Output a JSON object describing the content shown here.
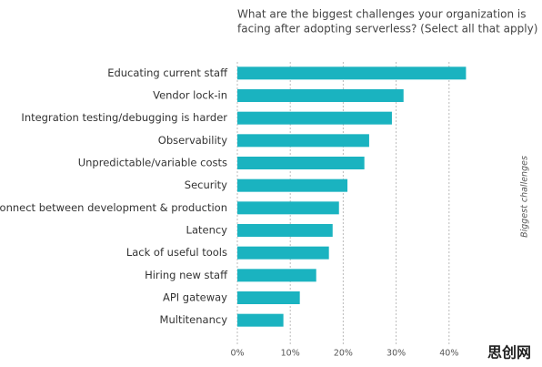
{
  "chart_data": {
    "type": "bar",
    "orientation": "horizontal",
    "title": [
      "What are the biggest challenges your organization is",
      "facing after adopting serverless? (Select all that apply)"
    ],
    "side_label": "Biggest challenges",
    "watermark": "思创网",
    "categories": [
      "Educating current staff",
      "Vendor lock-in",
      "Integration testing/debugging is harder",
      "Observability",
      "Unpredictable/variable costs",
      "Security",
      "Disconnect between development & production",
      "Latency",
      "Lack of useful tools",
      "Hiring new staff",
      "API gateway",
      "Multitenancy"
    ],
    "values": [
      43.2,
      31.4,
      29.2,
      24.9,
      24.0,
      20.8,
      19.2,
      18.0,
      17.3,
      14.9,
      11.8,
      8.7
    ],
    "color": "#1ab3c0",
    "xlim": [
      0,
      50
    ],
    "xticks": [
      {
        "value": 0,
        "label": "0%"
      },
      {
        "value": 10,
        "label": "10%"
      },
      {
        "value": 20,
        "label": "20%"
      },
      {
        "value": 30,
        "label": "30%"
      },
      {
        "value": 40,
        "label": "40%"
      }
    ],
    "grid": true
  }
}
